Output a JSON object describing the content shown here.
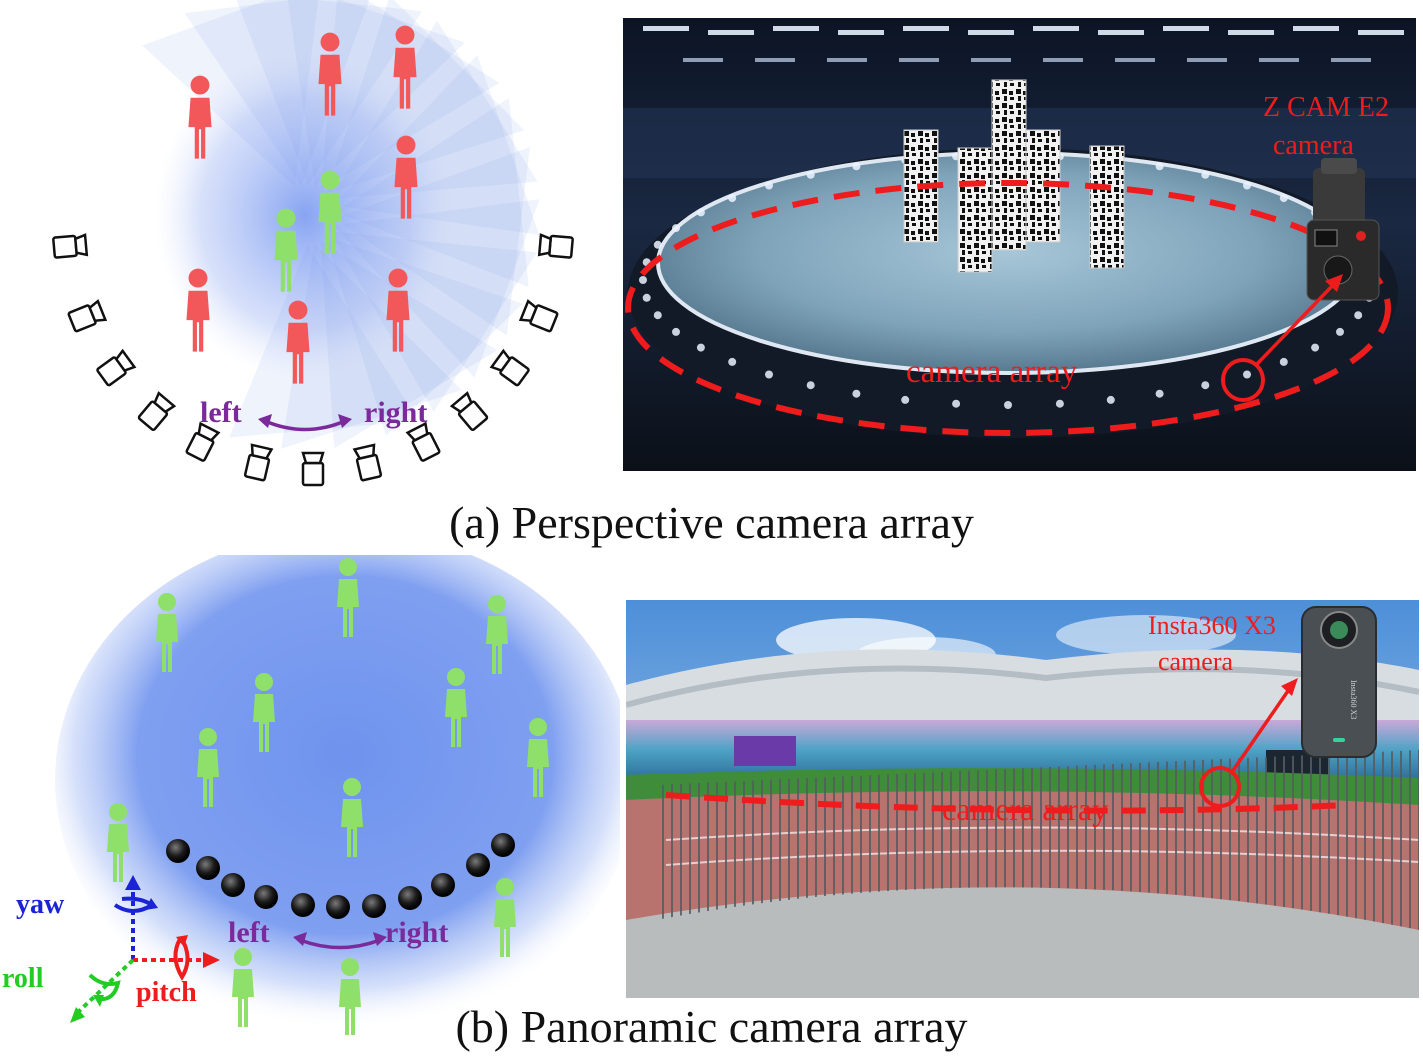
{
  "panel_a": {
    "caption": "(a) Perspective camera array",
    "diagram": {
      "left_label": "left",
      "right_label": "right"
    },
    "photo": {
      "camera_label_line1": "Z CAM E2",
      "camera_label_line2": "camera",
      "array_label": "camera array"
    }
  },
  "panel_b": {
    "caption": "(b) Panoramic camera array",
    "diagram": {
      "left_label": "left",
      "right_label": "right",
      "yaw_label": "yaw",
      "roll_label": "roll",
      "pitch_label": "pitch"
    },
    "photo": {
      "camera_label_line1": "Insta360 X3",
      "camera_label_line2": "camera",
      "array_label": "camera array",
      "device_text": "Insta360 X3"
    }
  },
  "colors": {
    "person_red": "#f2585a",
    "person_green": "#8fe06a",
    "label_purple": "#7a2a9a",
    "annotation_red": "#ee1c1c",
    "axis_blue": "#1a24d6",
    "axis_green": "#22cc22",
    "field_blue": "#6f93ee"
  }
}
